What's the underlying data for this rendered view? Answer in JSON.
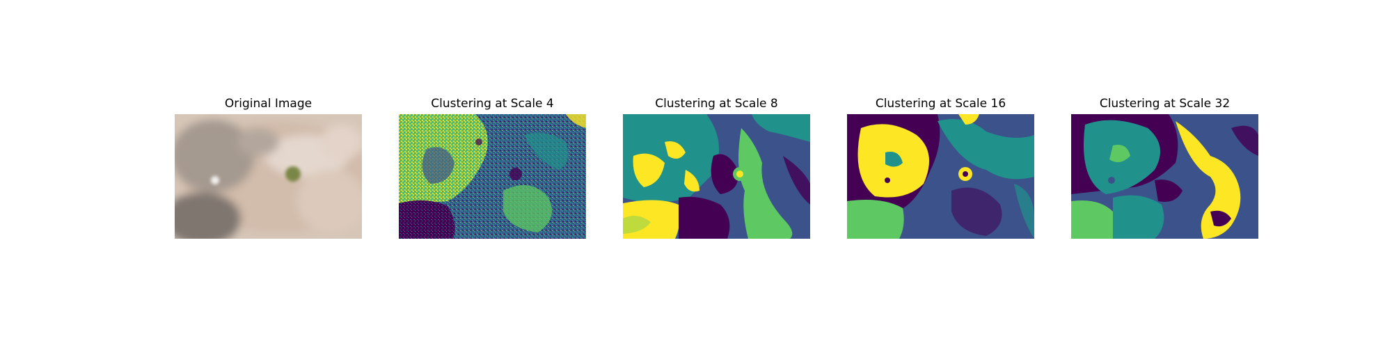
{
  "figure": {
    "panels": [
      {
        "title": "Original Image"
      },
      {
        "title": "Clustering at Scale 4"
      },
      {
        "title": "Clustering at Scale 8"
      },
      {
        "title": "Clustering at Scale 16"
      },
      {
        "title": "Clustering at Scale 32"
      }
    ]
  },
  "colors": {
    "viridis_0": "#440154",
    "viridis_1": "#3b528b",
    "viridis_2": "#21918c",
    "viridis_3": "#5ec962",
    "viridis_4": "#fde725",
    "ground_light": "#d9c8bb",
    "ground_shadow": "#8a7f77",
    "grass_patch": "#7f8a4e"
  }
}
